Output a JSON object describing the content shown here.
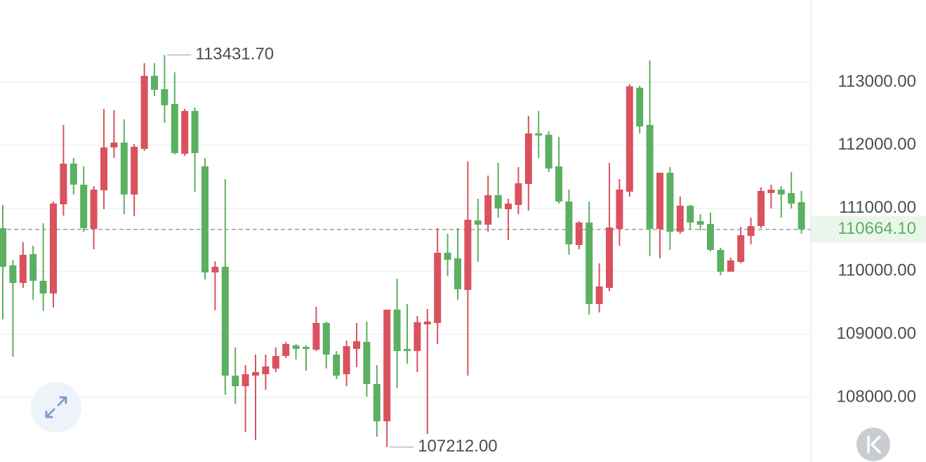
{
  "chart_data": {
    "type": "candlestick",
    "up_color": "#d9525e",
    "down_color": "#5bb061",
    "grid": true,
    "ylim": [
      106975,
      114303
    ],
    "yticks": [
      {
        "value": 108000,
        "label": "108000.00"
      },
      {
        "value": 109000,
        "label": "109000.00"
      },
      {
        "value": 110000,
        "label": "110000.00"
      },
      {
        "value": 111000,
        "label": "111000.00"
      },
      {
        "value": 112000,
        "label": "112000.00"
      },
      {
        "value": 113000,
        "label": "113000.00"
      }
    ],
    "last_price": {
      "value": 110664.1,
      "label": "110664.10"
    },
    "annotations": [
      {
        "value": 113431.7,
        "label": "113431.70"
      },
      {
        "value": 107212,
        "label": "107212.00"
      }
    ],
    "open": [
      110684,
      110094,
      109815,
      110272,
      109849,
      109648,
      111062,
      111708,
      111374,
      110673,
      111285,
      111964,
      112042,
      111218,
      111942,
      113100,
      112889,
      112655,
      111864,
      112543,
      111664,
      109982,
      110071,
      108345,
      108178,
      108345,
      108367,
      108457,
      108657,
      108824,
      108802,
      108757,
      109180,
      108679,
      108367,
      108769,
      108880,
      108212,
      107621,
      109392,
      108769,
      108735,
      109158,
      109180,
      110294,
      110205,
      109704,
      110806,
      110739,
      111207,
      110984,
      111051,
      111385,
      112187,
      112165,
      111664,
      111107,
      110416,
      110773,
      109481,
      109737,
      110673,
      111263,
      112911,
      112321,
      110673,
      111563,
      110628,
      111040,
      110795,
      110751,
      110339,
      109993,
      110149,
      110561,
      110717,
      111241,
      111296,
      111241,
      111096
    ],
    "high": [
      111051,
      110183,
      110461,
      110405,
      110762,
      111107,
      112321,
      111797,
      111664,
      111352,
      112577,
      112555,
      112410,
      112020,
      113301,
      113301,
      113431.7,
      113156,
      112577,
      112599,
      111797,
      110160,
      111463,
      108791,
      108512,
      108679,
      108679,
      108791,
      108880,
      108846,
      108824,
      109436,
      109203,
      108735,
      108902,
      109180,
      109203,
      108512,
      109392,
      109882,
      109481,
      109292,
      109403,
      110684,
      110595,
      110684,
      111742,
      111151,
      111519,
      111719,
      111151,
      111653,
      112465,
      112543,
      112220,
      112131,
      111296,
      110795,
      111107,
      110127,
      111719,
      111463,
      112967,
      112944,
      113345,
      111563,
      111653,
      111185,
      111051,
      110906,
      110929,
      110372,
      110216,
      110706,
      110851,
      111330,
      111374,
      111352,
      111575,
      111274
    ],
    "low": [
      109236,
      108646,
      109737,
      109548,
      109370,
      109425,
      110884,
      111218,
      110628,
      110350,
      110984,
      111797,
      110906,
      110873,
      111909,
      112777,
      112354,
      111853,
      111831,
      111263,
      109871,
      109381,
      108044,
      107900,
      107454,
      107321,
      108122,
      108401,
      108623,
      108601,
      108423,
      108735,
      108457,
      108290,
      108178,
      108479,
      108011,
      107376,
      107212,
      108145,
      108535,
      108401,
      107421,
      108846,
      109927,
      109548,
      108345,
      110149,
      110628,
      110851,
      110494,
      110906,
      110962,
      111797,
      111575,
      111074,
      110261,
      110350,
      109314,
      109347,
      109682,
      110405,
      111185,
      112187,
      110238,
      110205,
      110339,
      110595,
      110662,
      110650,
      110316,
      109938,
      109993,
      110127,
      110428,
      110684,
      110996,
      110851,
      110996,
      110595
    ],
    "close": [
      110071,
      109815,
      110261,
      109849,
      109648,
      111074,
      111708,
      111374,
      110684,
      111296,
      111964,
      112042,
      111218,
      111975,
      113100,
      112878,
      112633,
      111875,
      112543,
      111875,
      109982,
      110071,
      108345,
      108178,
      108367,
      108401,
      108490,
      108657,
      108846,
      108769,
      108769,
      109180,
      108679,
      108345,
      108813,
      108891,
      108212,
      107621,
      109392,
      108735,
      108735,
      109192,
      109203,
      110294,
      110183,
      109715,
      110817,
      110739,
      111207,
      110996,
      111074,
      111396,
      112187,
      112154,
      111630,
      111107,
      110428,
      110773,
      109481,
      109760,
      110695,
      111296,
      112933,
      112298,
      110673,
      111563,
      110628,
      111040,
      110773,
      110739,
      110339,
      109993,
      110172,
      110572,
      110717,
      111274,
      111296,
      111218,
      111074,
      110664.1
    ]
  }
}
